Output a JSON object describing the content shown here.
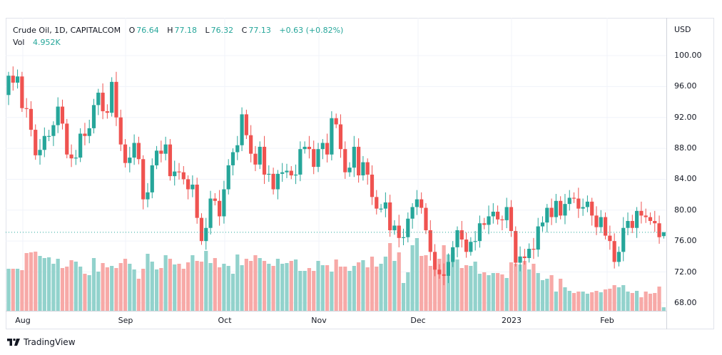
{
  "legend": {
    "symbol": "Crude Oil, 1D, CAPITALCOM",
    "o_label": "O",
    "o": "76.64",
    "h_label": "H",
    "h": "77.18",
    "l_label": "L",
    "l": "76.32",
    "c_label": "C",
    "c": "77.13",
    "change": "+0.63 (+0.82%)",
    "vol_label": "Vol",
    "vol": "4.952K"
  },
  "price_axis": {
    "currency": "USD",
    "ticks": [
      "100.00",
      "96.00",
      "92.00",
      "88.00",
      "84.00",
      "80.00",
      "76.00",
      "72.00",
      "68.00"
    ]
  },
  "time_axis": {
    "ticks": [
      "Aug",
      "Sep",
      "Oct",
      "Nov",
      "Dec",
      "2023",
      "Feb"
    ]
  },
  "branding": {
    "logo_text": "TradingView"
  },
  "colors": {
    "up": "#26a69a",
    "down": "#ef5350",
    "up_vol": "#92d2cc",
    "down_vol": "#f7a9a7",
    "grid": "#f0f3fa"
  },
  "chart_data": {
    "type": "candlestick",
    "title": "Crude Oil, 1D, CAPITALCOM",
    "ylabel": "USD",
    "ylim": [
      68,
      100
    ],
    "x_ticks": [
      "Aug",
      "Sep",
      "Oct",
      "Nov",
      "Dec",
      "2023",
      "Feb"
    ],
    "first_open": 94.9,
    "last_candle": {
      "open": 76.64,
      "high": 77.18,
      "low": 76.32,
      "close": 77.13
    },
    "close": [
      97.4,
      96.5,
      97.3,
      93.2,
      93.1,
      90.4,
      87.1,
      87.8,
      89.6,
      89.6,
      91,
      93.4,
      91.2,
      87.2,
      86.7,
      86.8,
      89.9,
      89.6,
      90.6,
      93.6,
      95.2,
      92.8,
      92.6,
      96.6,
      92,
      88.5,
      86.1,
      86.8,
      88.7,
      86.6,
      81.4,
      82.3,
      85.8,
      87.7,
      87.3,
      88.5,
      84.4,
      85,
      84.9,
      84,
      82.7,
      83.3,
      79,
      76,
      77.7,
      81.5,
      81.2,
      79.2,
      82.7,
      85.8,
      87.5,
      88.4,
      92.4,
      89.7,
      87.3,
      85.9,
      88.2,
      84.6,
      84.7,
      82.7,
      84.7,
      84.9,
      85.1,
      84.5,
      84.6,
      87.9,
      88.2,
      87.9,
      85.6,
      87.9,
      88.7,
      87.2,
      91.9,
      91.1,
      87.9,
      84.9,
      85.5,
      88.2,
      84.5,
      86.2,
      84.6,
      81.7,
      80.2,
      80.2,
      81,
      77.4,
      78,
      76.4,
      76.5,
      78.9,
      80.4,
      81.4,
      80.3,
      77.4,
      74.6,
      72.3,
      71.7,
      71.5,
      73.3,
      75.2,
      77.4,
      76.2,
      74.6,
      75.9,
      76,
      78.3,
      78.1,
      79.2,
      79.8,
      78.8,
      78.7,
      80.4,
      77.3,
      73.2,
      74,
      73.8,
      75,
      74.9,
      77.9,
      78.4,
      80.3,
      79.1,
      81.2,
      79.3,
      80.8,
      81.6,
      81.5,
      80.2,
      80.4,
      81.1,
      79.3,
      77.8,
      79.1,
      76.7,
      76,
      73.3,
      74.6,
      77.7,
      78.6,
      77.7,
      79.9,
      79.3,
      79.1,
      78.6,
      78.3,
      76.5,
      77.13
    ],
    "volume_k": [
      59,
      59,
      59,
      57,
      81,
      82,
      83,
      77,
      74,
      75,
      66,
      73,
      60,
      62,
      71,
      69,
      62,
      52,
      50,
      74,
      55,
      67,
      61,
      63,
      60,
      67,
      73,
      66,
      58,
      45,
      59,
      80,
      69,
      58,
      60,
      78,
      73,
      65,
      66,
      59,
      68,
      78,
      70,
      69,
      84,
      67,
      74,
      61,
      66,
      63,
      52,
      79,
      64,
      73,
      70,
      78,
      74,
      70,
      66,
      63,
      73,
      66,
      67,
      70,
      72,
      56,
      56,
      60,
      56,
      70,
      64,
      64,
      55,
      72,
      62,
      62,
      56,
      63,
      68,
      71,
      61,
      76,
      62,
      66,
      76,
      95,
      70,
      82,
      39,
      54,
      92,
      102,
      77,
      78,
      63,
      80,
      73,
      92,
      79,
      81,
      72,
      60,
      64,
      63,
      69,
      52,
      54,
      50,
      53,
      53,
      51,
      46,
      68,
      66,
      65,
      70,
      58,
      66,
      53,
      43,
      45,
      50,
      27,
      45,
      33,
      28,
      25,
      27,
      27,
      24,
      26,
      28,
      26,
      30,
      31,
      36,
      33,
      36,
      27,
      25,
      28,
      19,
      27,
      24,
      25,
      34,
      4.952
    ]
  }
}
